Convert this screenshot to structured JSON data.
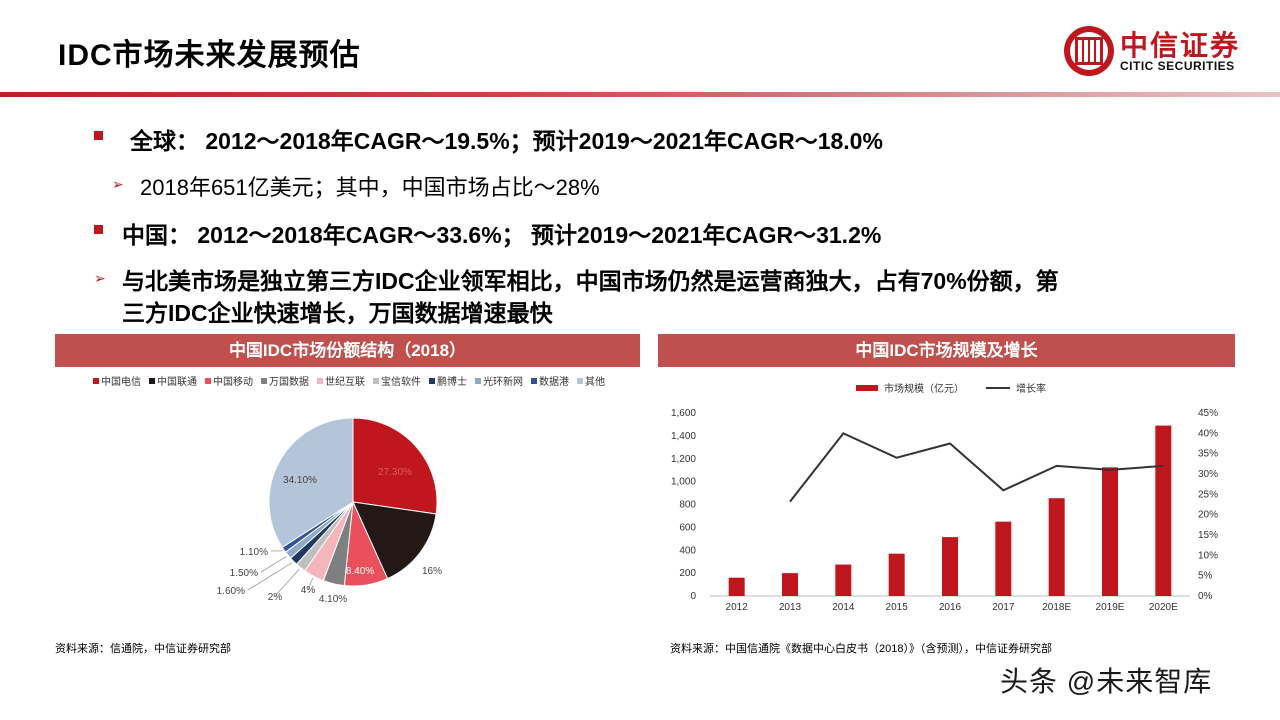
{
  "header": {
    "title": "IDC市场未来发展预估",
    "logo_cn": "中信证券",
    "logo_en": "CITIC SECURITIES"
  },
  "bullets": {
    "global_label": "全球：",
    "global_text": "2012～2018年CAGR～19.5%；预计2019～2021年CAGR～18.0%",
    "global_sub": "2018年651亿美元；其中，中国市场占比～28%",
    "china_label": "中国：",
    "china_text": "2012～2018年CAGR～33.6%； 预计2019～2021年CAGR～31.2%",
    "note_line1": "与北美市场是独立第三方IDC企业领军相比，中国市场仍然是运营商独大，占有70%份额，第",
    "note_line2": "三方IDC企业快速增长，万国数据增速最快"
  },
  "left_panel": {
    "title": "中国IDC市场份额结构（2018）",
    "source": "资料来源：信通院，中信证券研究部"
  },
  "right_panel": {
    "title": "中国IDC市场规模及增长",
    "source": "资料来源：中国信通院《数据中心白皮书（2018）》（含预测），中信证券研究部"
  },
  "watermark": "头条 @未来智库",
  "chart_data": [
    {
      "type": "pie",
      "title": "中国IDC市场份额结构（2018）",
      "series": [
        {
          "name": "中国电信",
          "value": 27.3,
          "label": "27.30%",
          "color": "#c0171f"
        },
        {
          "name": "中国联通",
          "value": 16,
          "label": "16%",
          "color": "#231815"
        },
        {
          "name": "中国移动",
          "value": 8.4,
          "label": "8.40%",
          "color": "#e9505c"
        },
        {
          "name": "万国数据",
          "value": 4.1,
          "label": "4.10%",
          "color": "#7f7f7f"
        },
        {
          "name": "世纪互联",
          "value": 4,
          "label": "4%",
          "color": "#f4b6bb"
        },
        {
          "name": "宝信软件",
          "value": 2,
          "label": "2%",
          "color": "#bfbfbf"
        },
        {
          "name": "鹏博士",
          "value": 1.6,
          "label": "1.60%",
          "color": "#1f3864"
        },
        {
          "name": "光环新网",
          "value": 1.5,
          "label": "1.50%",
          "color": "#8ea9c9"
        },
        {
          "name": "数据港",
          "value": 1.1,
          "label": "1.10%",
          "color": "#2e5597"
        },
        {
          "name": "其他",
          "value": 34.1,
          "label": "34.10%",
          "color": "#b4c4d9"
        }
      ],
      "legend_position": "top"
    },
    {
      "type": "bar",
      "title": "中国IDC市场规模及增长",
      "categories": [
        "2012",
        "2013",
        "2014",
        "2015",
        "2016",
        "2017",
        "2018E",
        "2019E",
        "2020E"
      ],
      "series": [
        {
          "name": "市场规模（亿元）",
          "type": "bar",
          "axis": "left",
          "color": "#c0171f",
          "values": [
            160,
            200,
            275,
            370,
            515,
            650,
            855,
            1125,
            1490
          ]
        },
        {
          "name": "增长率",
          "type": "line",
          "axis": "right",
          "color": "#333333",
          "values": [
            null,
            0.232,
            0.4,
            0.34,
            0.375,
            0.26,
            0.32,
            0.31,
            0.32
          ]
        }
      ],
      "ylim_left": [
        0,
        1600
      ],
      "yticks_left": [
        "0",
        "200",
        "400",
        "600",
        "800",
        "1,000",
        "1,200",
        "1,400",
        "1,600"
      ],
      "ylim_right": [
        0,
        0.45
      ],
      "yticks_right": [
        "0%",
        "5%",
        "10%",
        "15%",
        "20%",
        "25%",
        "30%",
        "35%",
        "40%",
        "45%"
      ],
      "legend_position": "top",
      "grid": false
    }
  ]
}
